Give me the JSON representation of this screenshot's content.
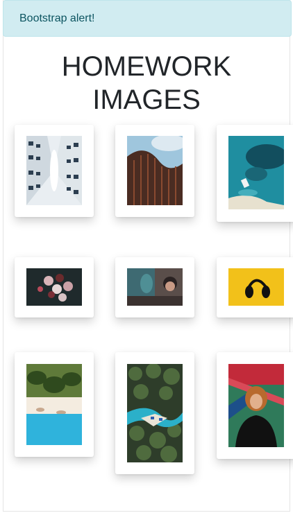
{
  "alert": {
    "text": "Bootstrap alert!"
  },
  "page": {
    "title_line1": "HOMEWORK",
    "title_line2": "IMAGES"
  },
  "gallery": {
    "images": [
      {
        "name": "building-facade-curve"
      },
      {
        "name": "curved-tower-sky"
      },
      {
        "name": "aerial-reef-boat"
      },
      {
        "name": "cupcakes-dark"
      },
      {
        "name": "person-gaming-headphones"
      },
      {
        "name": "headphones-yellow"
      },
      {
        "name": "upside-down-palm-beach"
      },
      {
        "name": "aerial-palms-pool"
      },
      {
        "name": "person-graffiti-wall"
      }
    ]
  }
}
